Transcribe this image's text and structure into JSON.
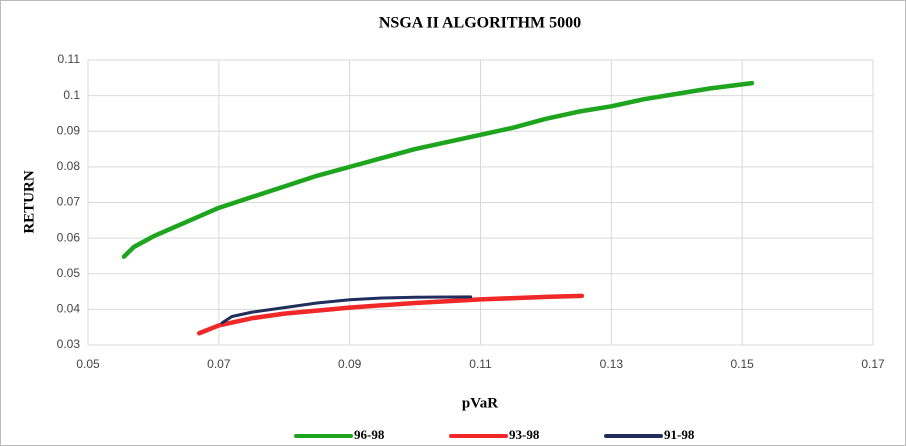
{
  "chart_data": {
    "type": "line",
    "title": "NSGA II ALGORITHM 5000",
    "x_label": "pVaR",
    "y_label": "RETURN",
    "xlim": [
      0.05,
      0.17
    ],
    "xticks": [
      0.05,
      0.07,
      0.09,
      0.11,
      0.13,
      0.15,
      0.17
    ],
    "ylim": [
      0.03,
      0.11
    ],
    "yticks": [
      0.03,
      0.04,
      0.05,
      0.06,
      0.07,
      0.08,
      0.09,
      0.1,
      0.11
    ],
    "grid": true,
    "legend": "bottom",
    "series": [
      {
        "name": "96-98",
        "color": "#1ea51e",
        "x": [
          0.0555,
          0.057,
          0.06,
          0.065,
          0.07,
          0.075,
          0.08,
          0.085,
          0.09,
          0.095,
          0.1,
          0.105,
          0.11,
          0.115,
          0.12,
          0.125,
          0.13,
          0.135,
          0.14,
          0.145,
          0.1515
        ],
        "values": [
          0.0548,
          0.0575,
          0.0605,
          0.0645,
          0.0685,
          0.0715,
          0.0745,
          0.0775,
          0.08,
          0.0825,
          0.085,
          0.087,
          0.089,
          0.091,
          0.0935,
          0.0955,
          0.097,
          0.099,
          0.1005,
          0.102,
          0.1035
        ]
      },
      {
        "name": "93-98",
        "color": "#f02828",
        "x": [
          0.067,
          0.07,
          0.075,
          0.08,
          0.09,
          0.1,
          0.11,
          0.12,
          0.1255
        ],
        "values": [
          0.0333,
          0.0355,
          0.0375,
          0.0388,
          0.0405,
          0.0418,
          0.0428,
          0.0435,
          0.0438
        ]
      },
      {
        "name": "91-98",
        "color": "#1f2e5c",
        "x": [
          0.0705,
          0.072,
          0.075,
          0.08,
          0.085,
          0.09,
          0.095,
          0.1,
          0.1085
        ],
        "values": [
          0.0362,
          0.038,
          0.0392,
          0.0405,
          0.0418,
          0.0427,
          0.0432,
          0.0434,
          0.0435
        ]
      }
    ]
  }
}
